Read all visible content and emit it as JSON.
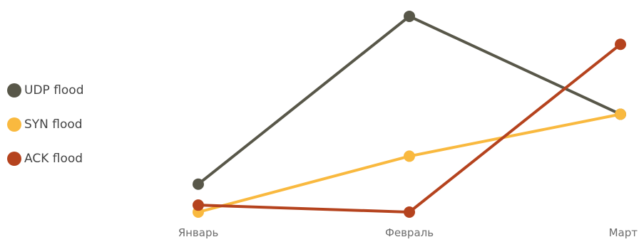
{
  "chart_data": {
    "type": "line",
    "categories": [
      "Январь",
      "Февраль",
      "Март"
    ],
    "series": [
      {
        "name": "UDP flood",
        "color": "#585749",
        "values": [
          4,
          28,
          14
        ]
      },
      {
        "name": "SYN flood",
        "color": "#f9b93f",
        "values": [
          0,
          8,
          14
        ]
      },
      {
        "name": "ACK flood",
        "color": "#b5431e",
        "values": [
          1,
          0,
          24
        ]
      }
    ],
    "ylim": [
      0,
      28.2
    ],
    "legend_position": "left",
    "grid": false
  }
}
